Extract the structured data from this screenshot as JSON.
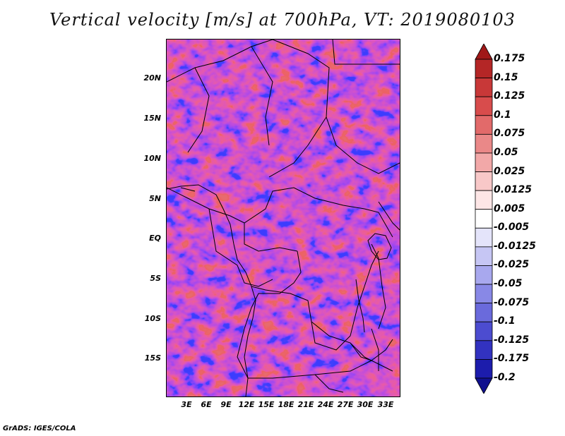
{
  "title": "Vertical velocity [m/s] at 700hPa, VT: 2019080103",
  "credit": "GrADS: IGES/COLA",
  "map": {
    "lat_labels": [
      "20N",
      "15N",
      "10N",
      "5N",
      "EQ",
      "5S",
      "10S",
      "15S"
    ],
    "lon_labels": [
      "3E",
      "6E",
      "9E",
      "12E",
      "15E",
      "18E",
      "21E",
      "24E",
      "27E",
      "30E",
      "33E"
    ]
  },
  "colorbar": {
    "labels": [
      "0.175",
      "0.15",
      "0.125",
      "0.1",
      "0.075",
      "0.05",
      "0.025",
      "0.0125",
      "0.005",
      "-0.005",
      "-0.0125",
      "-0.025",
      "-0.05",
      "-0.075",
      "-0.1",
      "-0.125",
      "-0.175",
      "-0.2"
    ],
    "colors": [
      "#a01818",
      "#b42626",
      "#c83838",
      "#d84c4c",
      "#e26a6a",
      "#ea8888",
      "#f2a8a8",
      "#f8c8c8",
      "#fde6e6",
      "#ffffff",
      "#e4e4fa",
      "#c6c6f4",
      "#a8a8ee",
      "#8888e6",
      "#6a6adc",
      "#4c4cd0",
      "#3232c0",
      "#1c1cac",
      "#10108e"
    ]
  }
}
